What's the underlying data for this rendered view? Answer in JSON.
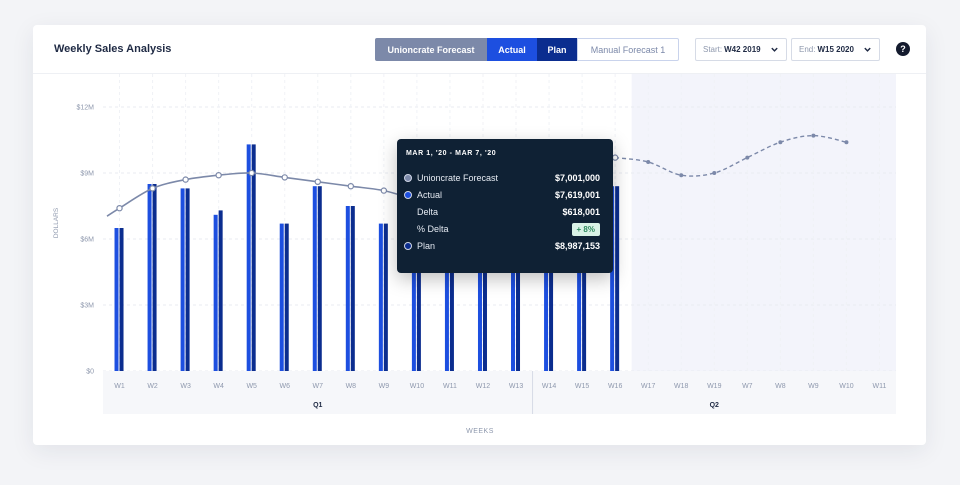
{
  "header": {
    "title": "Weekly Sales Analysis",
    "toggles": [
      "Unioncrate Forecast",
      "Actual",
      "Plan",
      "Manual Forecast 1"
    ],
    "start_label": "Start:",
    "start_value": "W42 2019",
    "end_label": "End:",
    "end_value": "W15 2020",
    "help": "?"
  },
  "colors": {
    "actual": "#1d4fe0",
    "plan": "#0b2d8f",
    "forecast": "#7c89a9",
    "future_shade": "#f3f4fb"
  },
  "tooltip": {
    "date": "MAR 1, '20 - MAR 7, '20",
    "rows": [
      {
        "label": "Unioncrate Forecast",
        "value": "$7,001,000"
      },
      {
        "label": "Actual",
        "value": "$7,619,001"
      },
      {
        "label": "Delta",
        "value": "$618,001"
      },
      {
        "label": "% Delta",
        "value": "+ 8%"
      },
      {
        "label": "Plan",
        "value": "$8,987,153"
      }
    ]
  },
  "chart_data": {
    "type": "bar",
    "ylabel": "DOLLARS",
    "xlabel": "WEEKS",
    "ylim": [
      0,
      12000000
    ],
    "yticks": [
      "$0",
      "$3M",
      "$6M",
      "$9M",
      "$12M"
    ],
    "groups": [
      {
        "label": "Q1",
        "weeks": 13
      },
      {
        "label": "Q2",
        "weeks": 11
      }
    ],
    "categories": [
      "W1",
      "W2",
      "W3",
      "W4",
      "W5",
      "W6",
      "W7",
      "W8",
      "W9",
      "W10",
      "W11",
      "W12",
      "W13",
      "W14",
      "W15",
      "W16",
      "W17",
      "W18",
      "W19",
      "W7",
      "W8",
      "W9",
      "W10",
      "W11"
    ],
    "series": [
      {
        "name": "Actual",
        "values": [
          6500000,
          8500000,
          8300000,
          7100000,
          10300000,
          6700000,
          8400000,
          7500000,
          6700000,
          7600000,
          7600000,
          7600000,
          7600000,
          8500000,
          8500000,
          8400000,
          null,
          null,
          null,
          null,
          null,
          null,
          null,
          null
        ]
      },
      {
        "name": "Plan",
        "values": [
          6500000,
          8500000,
          8300000,
          7300000,
          10300000,
          6700000,
          8400000,
          7500000,
          6700000,
          7600000,
          7600000,
          7600000,
          7600000,
          8500000,
          8500000,
          8400000,
          null,
          null,
          null,
          null,
          null,
          null,
          null,
          null
        ]
      },
      {
        "name": "Unioncrate Forecast",
        "values": [
          7400000,
          8300000,
          8700000,
          8900000,
          9000000,
          8800000,
          8600000,
          8400000,
          8200000,
          7800000,
          7700000,
          7500000,
          8000000,
          8500000,
          9300000,
          9700000,
          9500000,
          8900000,
          9000000,
          9700000,
          10400000,
          10700000,
          10400000,
          null
        ]
      }
    ],
    "future_start_index": 16
  }
}
